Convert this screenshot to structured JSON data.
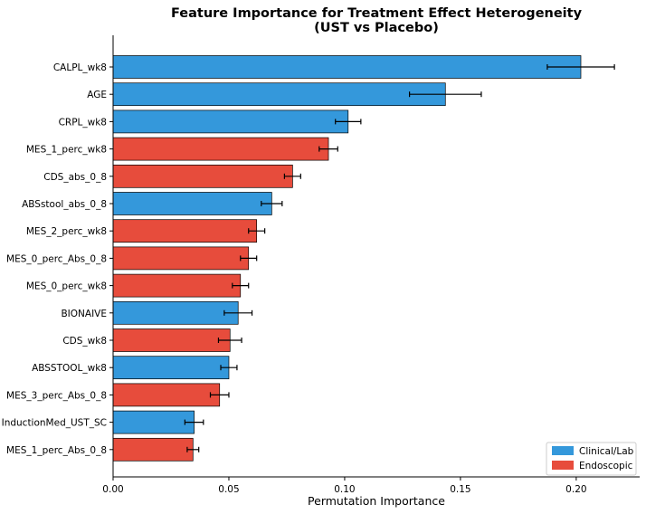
{
  "chart_data": {
    "type": "bar",
    "orientation": "horizontal",
    "title": "Feature Importance for Treatment Effect Heterogeneity",
    "subtitle": "(UST vs Placebo)",
    "xlabel": "Permutation Importance",
    "ylabel": "",
    "xlim": [
      0.0,
      0.226
    ],
    "xticks": [
      "0.00",
      "0.05",
      "0.10",
      "0.15",
      "0.20"
    ],
    "xtick_values": [
      0.0,
      0.05,
      0.1,
      0.15,
      0.2
    ],
    "grid": false,
    "legend_position": "bottom-right",
    "colors": {
      "Clinical/Lab": "#3498db",
      "Endoscopic": "#e74c3c"
    },
    "legend": [
      "Clinical/Lab",
      "Endoscopic"
    ],
    "categories": [
      "CALPL_wk8",
      "AGE",
      "CRPL_wk8",
      "MES_1_perc_wk8",
      "CDS_abs_0_8",
      "ABSstool_abs_0_8",
      "MES_2_perc_wk8",
      "MES_0_perc_Abs_0_8",
      "MES_0_perc_wk8",
      "BIONAIVE",
      "CDS_wk8",
      "ABSSTOOL_wk8",
      "MES_3_perc_Abs_0_8",
      "InductionMed_UST_SC",
      "MES_1_perc_Abs_0_8"
    ],
    "values": [
      0.202,
      0.1435,
      0.1015,
      0.093,
      0.0775,
      0.0685,
      0.062,
      0.0585,
      0.055,
      0.054,
      0.0505,
      0.05,
      0.046,
      0.035,
      0.0345
    ],
    "errors": [
      0.0145,
      0.0155,
      0.0055,
      0.004,
      0.0035,
      0.0045,
      0.0035,
      0.0035,
      0.0035,
      0.006,
      0.005,
      0.0035,
      0.004,
      0.004,
      0.0025
    ],
    "groups": [
      "Clinical/Lab",
      "Clinical/Lab",
      "Clinical/Lab",
      "Endoscopic",
      "Endoscopic",
      "Clinical/Lab",
      "Endoscopic",
      "Endoscopic",
      "Endoscopic",
      "Clinical/Lab",
      "Endoscopic",
      "Clinical/Lab",
      "Endoscopic",
      "Clinical/Lab",
      "Endoscopic"
    ]
  }
}
